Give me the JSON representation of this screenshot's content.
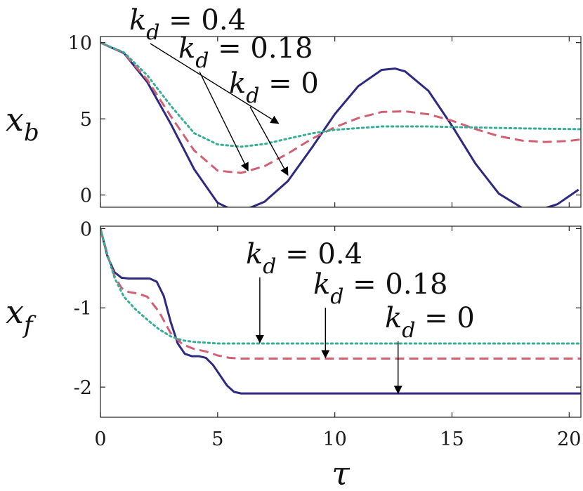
{
  "chart_data": [
    {
      "type": "line",
      "ylabel": "x_b",
      "xlim": [
        0,
        20.5
      ],
      "ylim": [
        -0.8,
        10.4
      ],
      "xticks": [
        0,
        5,
        10,
        15,
        20
      ],
      "yticks": [
        0,
        5,
        10
      ],
      "xtick_labels": [
        "",
        "",
        "",
        "",
        ""
      ],
      "ytick_labels": [
        "0",
        "5",
        "10"
      ],
      "series": [
        {
          "name": "k_d = 0",
          "color": "#2e2a80",
          "dash": "solid",
          "x": [
            0,
            1,
            2,
            3,
            4,
            5,
            5.5,
            6.28,
            7,
            8,
            9,
            10,
            11,
            12,
            12.57,
            13,
            14,
            15,
            16,
            17,
            18,
            18.85,
            19.5,
            20.4
          ],
          "y": [
            10,
            9.31,
            7.41,
            4.67,
            1.69,
            -0.51,
            -0.88,
            -0.9,
            -0.44,
            0.92,
            3.06,
            5.31,
            7.14,
            8.21,
            8.3,
            8.11,
            6.83,
            4.54,
            2.06,
            0.09,
            -0.85,
            -0.92,
            -0.6,
            0.35
          ]
        },
        {
          "name": "k_d = 0.18",
          "color": "#d16072",
          "dash": "dashed",
          "x": [
            0,
            1,
            2,
            3,
            4,
            5,
            6,
            7,
            8,
            9,
            10,
            11,
            12,
            13,
            14,
            15,
            16,
            17,
            18,
            19,
            20,
            20.5
          ],
          "y": [
            10,
            9.33,
            7.56,
            5.18,
            2.92,
            1.6,
            1.45,
            1.89,
            2.72,
            3.67,
            4.45,
            5.05,
            5.45,
            5.49,
            5.3,
            4.88,
            4.33,
            3.86,
            3.57,
            3.48,
            3.55,
            3.65
          ]
        },
        {
          "name": "k_d = 0.4",
          "color": "#36ad96",
          "dash": "dotted",
          "x": [
            0,
            1,
            2,
            3,
            4,
            5,
            6,
            7,
            8,
            9,
            10,
            12,
            14,
            16,
            18,
            20,
            20.5
          ],
          "y": [
            10,
            9.36,
            7.85,
            5.86,
            4.06,
            3.32,
            3.17,
            3.35,
            3.7,
            4.04,
            4.28,
            4.5,
            4.5,
            4.43,
            4.37,
            4.33,
            4.32
          ]
        }
      ],
      "annotations": [
        {
          "text": "k_d = 0.4",
          "target": [
            7.6,
            4.7
          ]
        },
        {
          "text": "k_d = 0.18",
          "target": [
            6.3,
            1.6
          ]
        },
        {
          "text": "k_d = 0",
          "target": [
            8.0,
            1.3
          ]
        }
      ]
    },
    {
      "type": "line",
      "xlabel": "τ",
      "ylabel": "x_f",
      "xlim": [
        0,
        20.5
      ],
      "ylim": [
        -2.38,
        0.03
      ],
      "xticks": [
        0,
        5,
        10,
        15,
        20
      ],
      "yticks": [
        0,
        -1,
        -2
      ],
      "xtick_labels": [
        "0",
        "5",
        "10",
        "15",
        "20"
      ],
      "ytick_labels": [
        "0",
        "-1",
        "-2"
      ],
      "series": [
        {
          "name": "k_d = 0",
          "color": "#2e2a80",
          "dash": "solid",
          "x": [
            0,
            0.3,
            0.6,
            0.9,
            1.2,
            1.6,
            2.1,
            2.4,
            2.7,
            3.0,
            3.3,
            3.6,
            3.9,
            4.2,
            4.5,
            4.8,
            5.1,
            5.4,
            5.7,
            6.0,
            10,
            15,
            20.5
          ],
          "y": [
            0,
            -0.35,
            -0.55,
            -0.62,
            -0.63,
            -0.63,
            -0.63,
            -0.67,
            -0.85,
            -1.18,
            -1.45,
            -1.58,
            -1.61,
            -1.61,
            -1.63,
            -1.72,
            -1.85,
            -1.98,
            -2.06,
            -2.08,
            -2.08,
            -2.08,
            -2.08
          ]
        },
        {
          "name": "k_d = 0.18",
          "color": "#d16072",
          "dash": "dashed",
          "x": [
            0,
            0.3,
            0.6,
            0.9,
            1.2,
            1.6,
            2.0,
            2.5,
            3.0,
            3.5,
            4.0,
            4.5,
            5.0,
            5.5,
            6.0,
            7,
            10,
            15,
            20.5
          ],
          "y": [
            0,
            -0.33,
            -0.6,
            -0.75,
            -0.8,
            -0.82,
            -0.86,
            -1.05,
            -1.32,
            -1.46,
            -1.52,
            -1.55,
            -1.6,
            -1.63,
            -1.64,
            -1.64,
            -1.64,
            -1.64,
            -1.64
          ]
        },
        {
          "name": "k_d = 0.4",
          "color": "#36ad96",
          "dash": "dotted",
          "x": [
            0,
            0.3,
            0.6,
            1.0,
            1.5,
            2.0,
            2.5,
            3.0,
            3.5,
            4.0,
            5.0,
            6.0,
            8,
            10,
            15,
            20.5
          ],
          "y": [
            0,
            -0.33,
            -0.62,
            -0.86,
            -1.02,
            -1.15,
            -1.27,
            -1.36,
            -1.41,
            -1.43,
            -1.45,
            -1.45,
            -1.45,
            -1.45,
            -1.45,
            -1.45
          ]
        }
      ],
      "annotations": [
        {
          "text": "k_d = 0.4",
          "target": [
            6.8,
            -1.44
          ]
        },
        {
          "text": "k_d = 0.18",
          "target": [
            9.6,
            -1.63
          ]
        },
        {
          "text": "k_d = 0",
          "target": [
            12.7,
            -2.08
          ]
        }
      ]
    }
  ]
}
